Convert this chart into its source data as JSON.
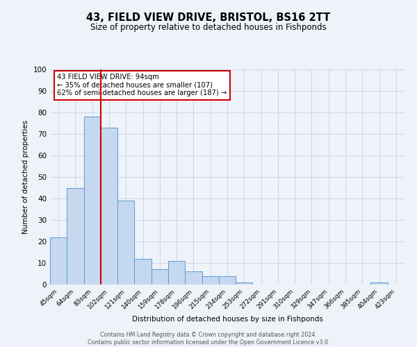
{
  "title": "43, FIELD VIEW DRIVE, BRISTOL, BS16 2TT",
  "subtitle": "Size of property relative to detached houses in Fishponds",
  "xlabel": "Distribution of detached houses by size in Fishponds",
  "ylabel": "Number of detached properties",
  "bar_labels": [
    "45sqm",
    "64sqm",
    "83sqm",
    "102sqm",
    "121sqm",
    "140sqm",
    "159sqm",
    "178sqm",
    "196sqm",
    "215sqm",
    "234sqm",
    "253sqm",
    "272sqm",
    "291sqm",
    "310sqm",
    "329sqm",
    "347sqm",
    "366sqm",
    "385sqm",
    "404sqm",
    "423sqm"
  ],
  "bar_values": [
    22,
    45,
    78,
    73,
    39,
    12,
    7,
    11,
    6,
    4,
    4,
    1,
    0,
    0,
    0,
    0,
    0,
    0,
    0,
    1,
    0
  ],
  "bar_color": "#c5d8f0",
  "bar_edge_color": "#5b9bd5",
  "vline_index": 3,
  "vline_color": "#cc0000",
  "ylim": [
    0,
    100
  ],
  "annotation_box_text": [
    "43 FIELD VIEW DRIVE: 94sqm",
    "← 35% of detached houses are smaller (107)",
    "62% of semi-detached houses are larger (187) →"
  ],
  "annotation_box_color": "#cc0000",
  "footer_lines": [
    "Contains HM Land Registry data © Crown copyright and database right 2024.",
    "Contains public sector information licensed under the Open Government Licence v3.0."
  ],
  "background_color": "#eef2f9",
  "grid_color": "#c8d0e8"
}
